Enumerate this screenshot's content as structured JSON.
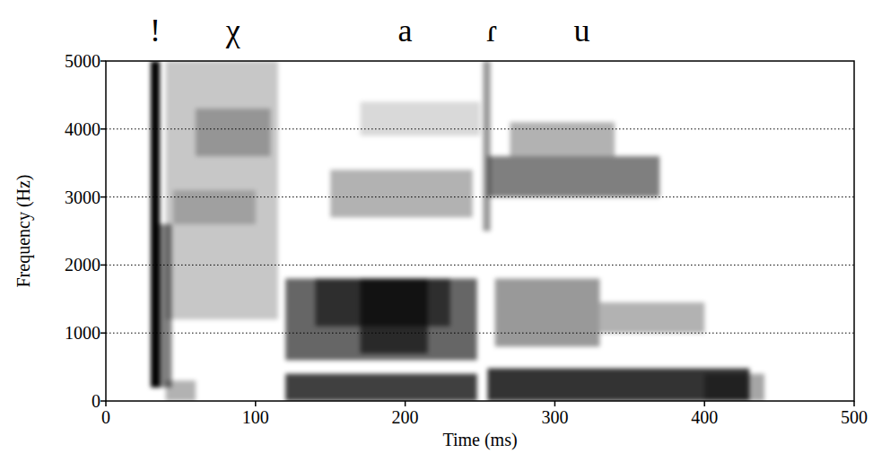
{
  "chart_data": {
    "type": "spectrogram",
    "xlabel": "Time (ms)",
    "ylabel": "Frequency (Hz)",
    "xlim": [
      0,
      500
    ],
    "xticks": [
      0,
      100,
      200,
      300,
      400,
      500
    ],
    "ylim": [
      0,
      5000
    ],
    "yticks": [
      0,
      1000,
      2000,
      3000,
      4000,
      5000
    ],
    "grid": true,
    "annotations": [
      {
        "text": "!",
        "x": 33
      },
      {
        "text": "χ",
        "x": 85
      },
      {
        "text": "a",
        "x": 200
      },
      {
        "text": "ɾ",
        "x": 258
      },
      {
        "text": "u",
        "x": 318
      }
    ],
    "cells": [
      {
        "t0": 40,
        "t1": 115,
        "f0": 1200,
        "f1": 5000,
        "level": 0.22
      },
      {
        "t0": 60,
        "t1": 110,
        "f0": 3600,
        "f1": 4300,
        "level": 0.25
      },
      {
        "t0": 45,
        "t1": 100,
        "f0": 2600,
        "f1": 3100,
        "level": 0.2
      },
      {
        "t0": 40,
        "t1": 60,
        "f0": 0,
        "f1": 300,
        "level": 0.3
      },
      {
        "t0": 34,
        "t1": 44,
        "f0": 200,
        "f1": 2600,
        "level": 0.5
      },
      {
        "t0": 30,
        "t1": 36,
        "f0": 200,
        "f1": 5000,
        "level": 1.0
      },
      {
        "t0": 120,
        "t1": 248,
        "f0": 600,
        "f1": 1800,
        "level": 0.6
      },
      {
        "t0": 140,
        "t1": 230,
        "f0": 1100,
        "f1": 1800,
        "level": 0.55
      },
      {
        "t0": 170,
        "t1": 215,
        "f0": 700,
        "f1": 1800,
        "level": 0.6
      },
      {
        "t0": 120,
        "t1": 248,
        "f0": 0,
        "f1": 400,
        "level": 0.75
      },
      {
        "t0": 150,
        "t1": 245,
        "f0": 2700,
        "f1": 3400,
        "level": 0.3
      },
      {
        "t0": 170,
        "t1": 250,
        "f0": 3900,
        "f1": 4400,
        "level": 0.15
      },
      {
        "t0": 252,
        "t1": 257,
        "f0": 2500,
        "f1": 5000,
        "level": 0.4
      },
      {
        "t0": 255,
        "t1": 430,
        "f0": 0,
        "f1": 480,
        "level": 0.8
      },
      {
        "t0": 260,
        "t1": 330,
        "f0": 800,
        "f1": 1800,
        "level": 0.4
      },
      {
        "t0": 330,
        "t1": 400,
        "f0": 1000,
        "f1": 1450,
        "level": 0.3
      },
      {
        "t0": 255,
        "t1": 370,
        "f0": 3000,
        "f1": 3600,
        "level": 0.5
      },
      {
        "t0": 270,
        "t1": 340,
        "f0": 3600,
        "f1": 4100,
        "level": 0.3
      },
      {
        "t0": 400,
        "t1": 440,
        "f0": 0,
        "f1": 400,
        "level": 0.35
      }
    ]
  }
}
